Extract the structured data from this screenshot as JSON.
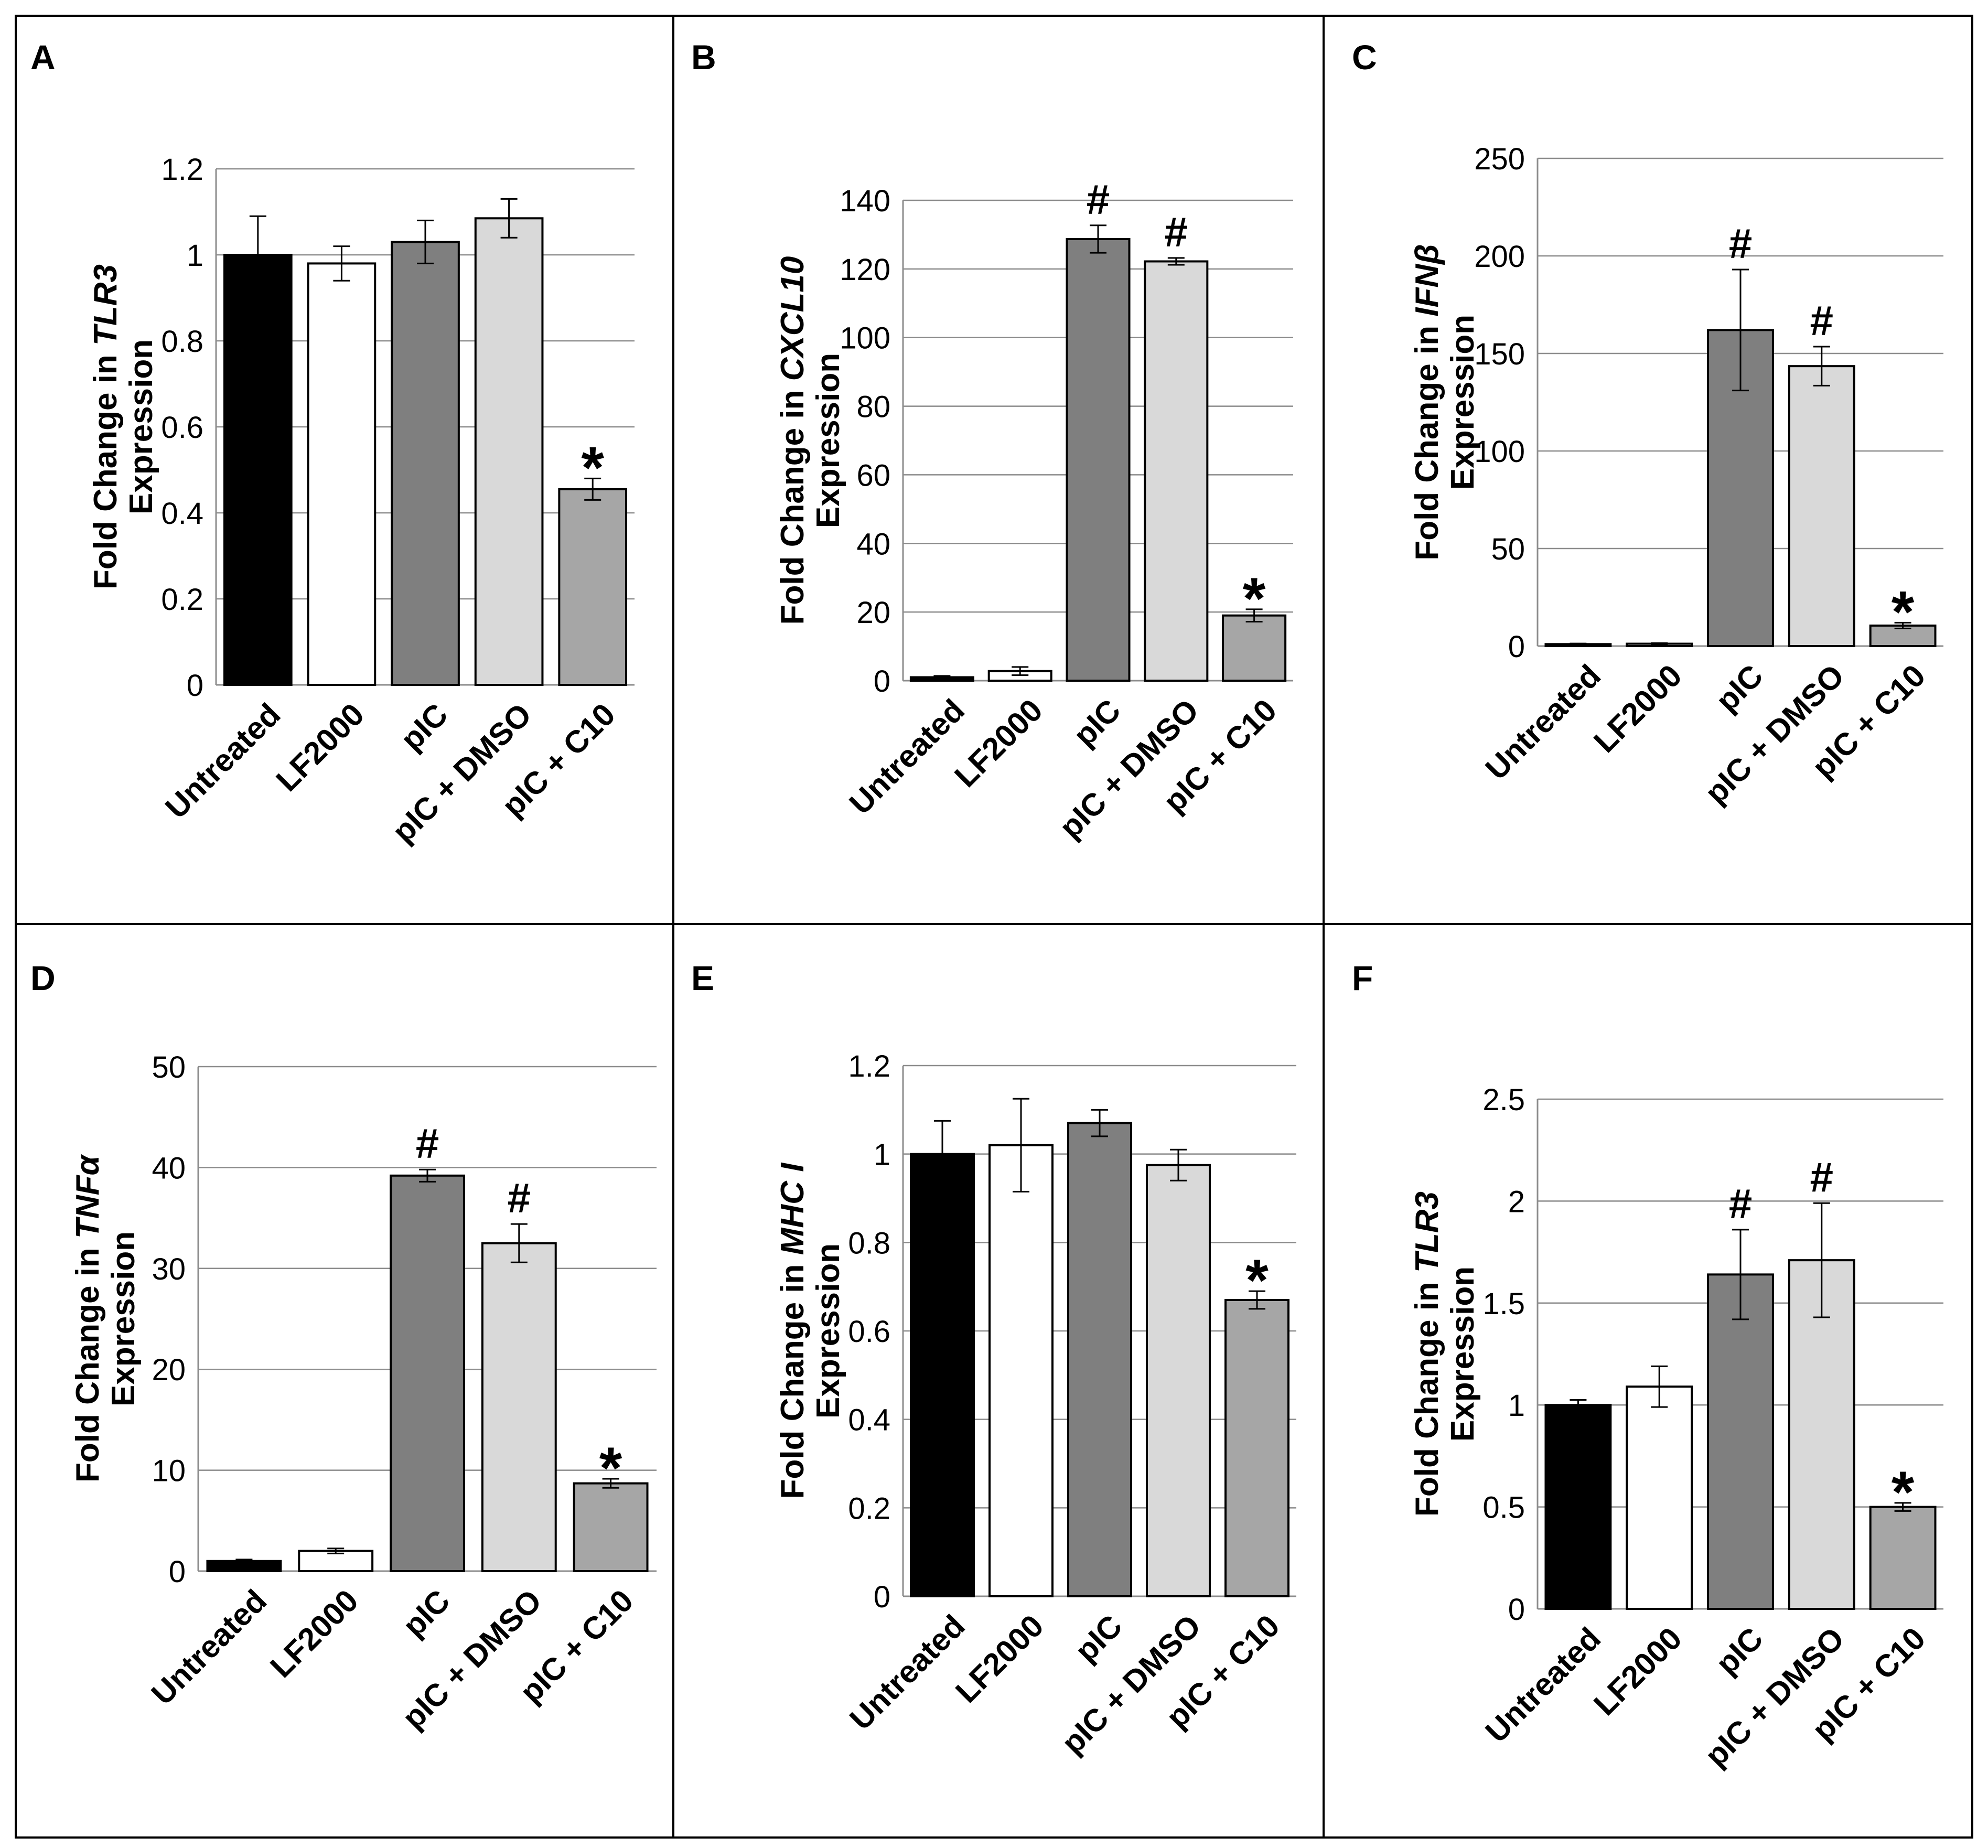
{
  "chart_data": [
    {
      "panel": "A",
      "type": "bar",
      "categories": [
        "Untreated",
        "LF2000",
        "pIC",
        "pIC + DMSO",
        "pIC + C10"
      ],
      "values": [
        1.0,
        0.98,
        1.03,
        1.085,
        0.455
      ],
      "errors": [
        0.09,
        0.04,
        0.05,
        0.045,
        0.025
      ],
      "annotations": [
        "",
        "",
        "",
        "",
        "*"
      ],
      "ylabel_prefix": "Fold Change in ",
      "ylabel_gene": "TLR3",
      "ylabel_line2": "Expression",
      "ylim": [
        0,
        1.2
      ],
      "yticks": [
        "0",
        "0.2",
        "0.4",
        "0.6",
        "0.8",
        "1",
        "1.2"
      ],
      "grid": true
    },
    {
      "panel": "B",
      "type": "bar",
      "categories": [
        "Untreated",
        "LF2000",
        "pIC",
        "pIC + DMSO",
        "pIC + C10"
      ],
      "values": [
        1.0,
        2.8,
        128.7,
        122.2,
        19.0
      ],
      "errors": [
        0.4,
        1.2,
        4.0,
        1.0,
        1.8
      ],
      "annotations": [
        "",
        "",
        "#",
        "#",
        "*"
      ],
      "ylabel_prefix": "Fold Change in ",
      "ylabel_gene": "CXCL10",
      "ylabel_line2": "Expression",
      "ylim": [
        0,
        140
      ],
      "yticks": [
        "0",
        "20",
        "40",
        "60",
        "80",
        "100",
        "120",
        "140"
      ],
      "grid": true
    },
    {
      "panel": "C",
      "type": "bar",
      "categories": [
        "Untreated",
        "LF2000",
        "pIC",
        "pIC + DMSO",
        "pIC + C10"
      ],
      "values": [
        1.0,
        1.2,
        162.0,
        143.5,
        10.5
      ],
      "errors": [
        0.3,
        0.3,
        31.0,
        10.0,
        1.5
      ],
      "annotations": [
        "",
        "",
        "#",
        "#",
        "*"
      ],
      "ylabel_prefix": "Fold Change in ",
      "ylabel_gene": "IFNβ",
      "ylabel_line2": "Expression",
      "ylim": [
        0,
        250
      ],
      "yticks": [
        "0",
        "50",
        "100",
        "150",
        "200",
        "250"
      ],
      "grid": true
    },
    {
      "panel": "D",
      "type": "bar",
      "categories": [
        "Untreated",
        "LF2000",
        "pIC",
        "pIC + DMSO",
        "pIC + C10"
      ],
      "values": [
        1.0,
        2.0,
        39.2,
        32.5,
        8.7
      ],
      "errors": [
        0.15,
        0.25,
        0.6,
        1.9,
        0.45
      ],
      "annotations": [
        "",
        "",
        "#",
        "#",
        "*"
      ],
      "ylabel_prefix": "Fold Change in ",
      "ylabel_gene": "TNFα",
      "ylabel_line2": "Expression",
      "ylim": [
        0,
        50
      ],
      "yticks": [
        "0",
        "10",
        "20",
        "30",
        "40",
        "50"
      ],
      "grid": true
    },
    {
      "panel": "E",
      "type": "bar",
      "categories": [
        "Untreated",
        "LF2000",
        "pIC",
        "pIC + DMSO",
        "pIC + C10"
      ],
      "values": [
        1.0,
        1.02,
        1.07,
        0.975,
        0.67
      ],
      "errors": [
        0.075,
        0.105,
        0.03,
        0.035,
        0.02
      ],
      "annotations": [
        "",
        "",
        "",
        "",
        "*"
      ],
      "ylabel_prefix": "Fold Change in ",
      "ylabel_gene": "MHC I",
      "ylabel_line2": "Expression",
      "ylim": [
        0,
        1.2
      ],
      "yticks": [
        "0",
        "0.2",
        "0.4",
        "0.6",
        "0.8",
        "1",
        "1.2"
      ],
      "grid": true
    },
    {
      "panel": "F",
      "type": "bar",
      "categories": [
        "Untreated",
        "LF2000",
        "pIC",
        "pIC + DMSO",
        "pIC + C10"
      ],
      "values": [
        1.0,
        1.09,
        1.64,
        1.71,
        0.5
      ],
      "errors": [
        0.025,
        0.1,
        0.22,
        0.28,
        0.02
      ],
      "annotations": [
        "",
        "",
        "#",
        "#",
        "*"
      ],
      "ylabel_prefix": "Fold Change in ",
      "ylabel_gene": "TLR3",
      "ylabel_line2": "Expression",
      "ylim": [
        0,
        2.5
      ],
      "yticks": [
        "0",
        "0.5",
        "1",
        "1.5",
        "2",
        "2.5"
      ],
      "grid": true
    }
  ],
  "bar_colors": [
    "#000000",
    "#ffffff",
    "#7f7f7f",
    "#d9d9d9",
    "#a6a6a6"
  ],
  "grid_color": "#8c8c8c"
}
